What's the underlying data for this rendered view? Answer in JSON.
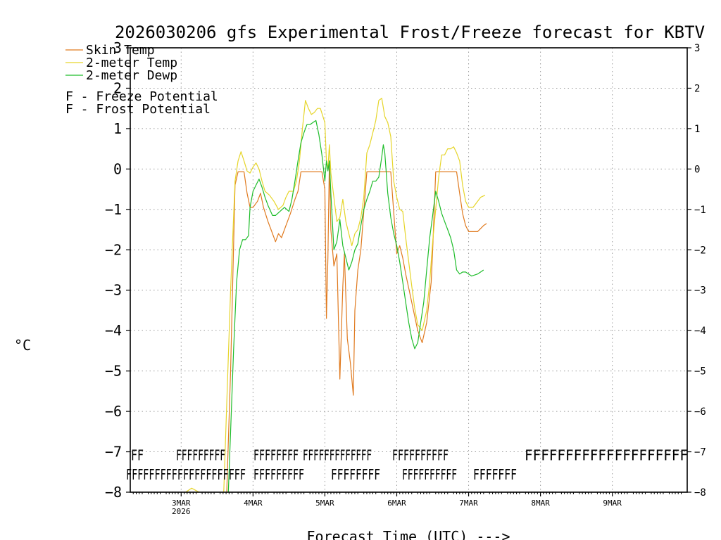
{
  "chart_data": {
    "type": "line",
    "title": "2026030206 gfs Experimental Frost/Freeze forecast for KBTV",
    "ylabel": "°C",
    "xlabel": "Forecast Time (UTC) --->",
    "ylim": [
      -8,
      3
    ],
    "xlim": [
      -17,
      169
    ],
    "y_ticks": [
      -8,
      -7,
      -6,
      -5,
      -4,
      -3,
      -2,
      -1,
      0,
      1,
      2,
      3
    ],
    "y_tick_labels": [
      "−8",
      "−7",
      "−6",
      "−5",
      "−4",
      "−3",
      "−2",
      "−1",
      "0",
      "1",
      "2",
      "3"
    ],
    "x_ticks": [
      {
        "hour": 0,
        "label": "3MAR",
        "sub": "2026"
      },
      {
        "hour": 24,
        "label": "4MAR",
        "sub": ""
      },
      {
        "hour": 48,
        "label": "5MAR",
        "sub": ""
      },
      {
        "hour": 72,
        "label": "6MAR",
        "sub": ""
      },
      {
        "hour": 96,
        "label": "7MAR",
        "sub": ""
      },
      {
        "hour": 120,
        "label": "8MAR",
        "sub": ""
      },
      {
        "hour": 144,
        "label": "9MAR",
        "sub": ""
      }
    ],
    "grid": true,
    "legend_position": "top-left",
    "series": [
      {
        "name": "Skin Temp",
        "color": "#e07a1f",
        "points": [
          [
            15,
            -8.5
          ],
          [
            16.5,
            -5
          ],
          [
            18,
            -0.4
          ],
          [
            19,
            -0.07
          ],
          [
            21,
            -0.07
          ],
          [
            22,
            -0.6
          ],
          [
            23,
            -0.95
          ],
          [
            24,
            -0.95
          ],
          [
            25.5,
            -0.8
          ],
          [
            26.5,
            -0.6
          ],
          [
            27.5,
            -0.95
          ],
          [
            29,
            -1.3
          ],
          [
            30,
            -1.5
          ],
          [
            31.5,
            -1.8
          ],
          [
            32.5,
            -1.6
          ],
          [
            33.5,
            -1.7
          ],
          [
            35,
            -1.4
          ],
          [
            36.5,
            -1.1
          ],
          [
            38,
            -0.75
          ],
          [
            39,
            -0.55
          ],
          [
            40,
            -0.07
          ],
          [
            42,
            -0.07
          ],
          [
            47,
            -0.07
          ],
          [
            48,
            -0.5
          ],
          [
            48.5,
            -3.7
          ],
          [
            49,
            -2.2
          ],
          [
            49.5,
            0.2
          ],
          [
            50,
            -1.5
          ],
          [
            51,
            -2.4
          ],
          [
            52,
            -2.1
          ],
          [
            53,
            -5.2
          ],
          [
            54,
            -2.9
          ],
          [
            54.5,
            -2.1
          ],
          [
            55.5,
            -4.2
          ],
          [
            56.5,
            -4.8
          ],
          [
            57.5,
            -5.6
          ],
          [
            58,
            -3.5
          ],
          [
            59,
            -2.5
          ],
          [
            60,
            -2
          ],
          [
            62,
            -0.07
          ],
          [
            70,
            -0.07
          ],
          [
            72,
            -2.1
          ],
          [
            73,
            -1.9
          ],
          [
            74,
            -2.2
          ],
          [
            75,
            -2.6
          ],
          [
            77,
            -3.3
          ],
          [
            79,
            -4.0
          ],
          [
            80.5,
            -4.3
          ],
          [
            82,
            -3.8
          ],
          [
            83.5,
            -2.8
          ],
          [
            84,
            -2.0
          ],
          [
            85,
            -0.07
          ],
          [
            92,
            -0.07
          ],
          [
            93,
            -0.6
          ],
          [
            94,
            -1.1
          ],
          [
            95,
            -1.4
          ],
          [
            96,
            -1.55
          ],
          [
            99,
            -1.55
          ],
          [
            101,
            -1.4
          ],
          [
            102,
            -1.35
          ]
        ]
      },
      {
        "name": "2-meter Temp",
        "color": "#e6d52a",
        "points": [
          [
            0.5,
            -8.5
          ],
          [
            1.5,
            -8
          ],
          [
            3.5,
            -7.9
          ],
          [
            6,
            -8
          ],
          [
            9,
            -8.2
          ],
          [
            12,
            -8.4
          ],
          [
            14,
            -8.5
          ],
          [
            16.5,
            -3
          ],
          [
            18,
            -0.3
          ],
          [
            19,
            0.2
          ],
          [
            20,
            0.43
          ],
          [
            21,
            0.2
          ],
          [
            22,
            -0.05
          ],
          [
            23,
            -0.1
          ],
          [
            24,
            0.05
          ],
          [
            25,
            0.15
          ],
          [
            26,
            0
          ],
          [
            27,
            -0.3
          ],
          [
            28,
            -0.55
          ],
          [
            29.5,
            -0.65
          ],
          [
            31,
            -0.8
          ],
          [
            32.5,
            -1.0
          ],
          [
            34,
            -0.9
          ],
          [
            35,
            -0.7
          ],
          [
            36,
            -0.55
          ],
          [
            37.5,
            -0.55
          ],
          [
            38.5,
            -0.3
          ],
          [
            39.5,
            0.2
          ],
          [
            40.5,
            1.0
          ],
          [
            41.5,
            1.7
          ],
          [
            42.5,
            1.5
          ],
          [
            43.5,
            1.35
          ],
          [
            44.5,
            1.4
          ],
          [
            45.5,
            1.5
          ],
          [
            46.5,
            1.5
          ],
          [
            48,
            1.15
          ],
          [
            48.5,
            0.2
          ],
          [
            49,
            0.0
          ],
          [
            49.5,
            0.6
          ],
          [
            50,
            -0.1
          ],
          [
            51,
            -0.7
          ],
          [
            52,
            -1.3
          ],
          [
            53,
            -1.2
          ],
          [
            54,
            -0.75
          ],
          [
            55,
            -1.3
          ],
          [
            56,
            -1.6
          ],
          [
            57,
            -1.9
          ],
          [
            58,
            -1.6
          ],
          [
            59,
            -1.5
          ],
          [
            60,
            -1.2
          ],
          [
            61,
            -0.7
          ],
          [
            62,
            0.4
          ],
          [
            63,
            0.6
          ],
          [
            64,
            0.9
          ],
          [
            65,
            1.2
          ],
          [
            66,
            1.7
          ],
          [
            67,
            1.75
          ],
          [
            68,
            1.3
          ],
          [
            69,
            1.15
          ],
          [
            70,
            0.8
          ],
          [
            71,
            -0.3
          ],
          [
            72,
            -0.7
          ],
          [
            73,
            -1.0
          ],
          [
            74,
            -1.05
          ],
          [
            75,
            -1.7
          ],
          [
            76,
            -2.3
          ],
          [
            77,
            -2.9
          ],
          [
            78,
            -3.45
          ],
          [
            79,
            -3.85
          ],
          [
            80.5,
            -4.0
          ],
          [
            82,
            -3.5
          ],
          [
            83,
            -2.8
          ],
          [
            84,
            -1.8
          ],
          [
            85,
            -1.0
          ],
          [
            86,
            -0.2
          ],
          [
            87,
            0.35
          ],
          [
            88,
            0.35
          ],
          [
            89,
            0.5
          ],
          [
            90,
            0.5
          ],
          [
            91,
            0.55
          ],
          [
            92,
            0.4
          ],
          [
            93,
            0.2
          ],
          [
            94,
            -0.4
          ],
          [
            95,
            -0.8
          ],
          [
            96,
            -0.95
          ],
          [
            97.5,
            -0.95
          ],
          [
            100,
            -0.7
          ],
          [
            101.5,
            -0.65
          ]
        ]
      },
      {
        "name": "2-meter Dewp",
        "color": "#1fbd2b",
        "points": [
          [
            15.5,
            -8.5
          ],
          [
            16.5,
            -6.5
          ],
          [
            17.5,
            -4.5
          ],
          [
            18.5,
            -2.8
          ],
          [
            19.5,
            -2.0
          ],
          [
            20.5,
            -1.75
          ],
          [
            21.5,
            -1.75
          ],
          [
            22.5,
            -1.65
          ],
          [
            23,
            -0.95
          ],
          [
            24,
            -0.55
          ],
          [
            25,
            -0.4
          ],
          [
            26,
            -0.25
          ],
          [
            27,
            -0.45
          ],
          [
            28,
            -0.7
          ],
          [
            29,
            -0.9
          ],
          [
            30.5,
            -1.15
          ],
          [
            31.5,
            -1.15
          ],
          [
            33,
            -1.05
          ],
          [
            34.5,
            -0.95
          ],
          [
            36,
            -1.05
          ],
          [
            37,
            -0.75
          ],
          [
            38,
            -0.3
          ],
          [
            39,
            0.2
          ],
          [
            40,
            0.65
          ],
          [
            41,
            0.9
          ],
          [
            42,
            1.1
          ],
          [
            43,
            1.1
          ],
          [
            44,
            1.15
          ],
          [
            45,
            1.2
          ],
          [
            46,
            0.85
          ],
          [
            47,
            0.35
          ],
          [
            48,
            -0.3
          ],
          [
            48.5,
            0.2
          ],
          [
            49,
            -0.05
          ],
          [
            49.5,
            0.2
          ],
          [
            50,
            -0.6
          ],
          [
            51,
            -2.0
          ],
          [
            52,
            -1.8
          ],
          [
            53,
            -1.25
          ],
          [
            54,
            -1.9
          ],
          [
            55,
            -2.2
          ],
          [
            56,
            -2.5
          ],
          [
            57,
            -2.3
          ],
          [
            58,
            -2.0
          ],
          [
            59,
            -1.85
          ],
          [
            60,
            -1.4
          ],
          [
            61,
            -1.0
          ],
          [
            62,
            -0.75
          ],
          [
            63,
            -0.55
          ],
          [
            64,
            -0.3
          ],
          [
            65,
            -0.3
          ],
          [
            66,
            -0.2
          ],
          [
            67,
            0.3
          ],
          [
            67.5,
            0.6
          ],
          [
            68,
            0.4
          ],
          [
            69,
            -0.6
          ],
          [
            70,
            -1.2
          ],
          [
            71,
            -1.6
          ],
          [
            72,
            -1.9
          ],
          [
            73,
            -2.3
          ],
          [
            74,
            -2.8
          ],
          [
            75,
            -3.3
          ],
          [
            76,
            -3.8
          ],
          [
            77,
            -4.2
          ],
          [
            78,
            -4.45
          ],
          [
            79,
            -4.3
          ],
          [
            80,
            -3.8
          ],
          [
            81,
            -3.3
          ],
          [
            82,
            -2.5
          ],
          [
            83,
            -1.7
          ],
          [
            84,
            -1.15
          ],
          [
            85,
            -0.55
          ],
          [
            86,
            -0.8
          ],
          [
            87,
            -1.1
          ],
          [
            88,
            -1.3
          ],
          [
            89,
            -1.5
          ],
          [
            90,
            -1.7
          ],
          [
            91,
            -2.0
          ],
          [
            92,
            -2.5
          ],
          [
            93,
            -2.6
          ],
          [
            94,
            -2.55
          ],
          [
            95,
            -2.55
          ],
          [
            96,
            -2.6
          ],
          [
            97,
            -2.65
          ],
          [
            99,
            -2.6
          ],
          [
            101,
            -2.5
          ]
        ]
      }
    ],
    "frost_rows": [
      {
        "name": "F - Frost Potential",
        "color": "#4a63c8",
        "y": -7.07,
        "segments": [
          "FF",
          "FFFFFFFFF",
          "FFFFFFFF",
          "FFFFFFFFFFFFF",
          "FFFFFFFFFF",
          "FFFFFFFFFFFFFFFFFFFF"
        ]
      },
      {
        "name": "F - Freeze Potential",
        "color": "#cc2c8c",
        "y": -7.55,
        "segments": [
          "FFFFFFFFFFFFFFFFFFFFF",
          "FFFFFFFFF",
          "FFFFFFFF",
          "FFFFFFFFFF",
          "FFFFFFF"
        ]
      }
    ],
    "legend": [
      {
        "label": "Skin Temp",
        "kind": "line",
        "color": "#e07a1f"
      },
      {
        "label": "2-meter Temp",
        "kind": "line",
        "color": "#e6d52a"
      },
      {
        "label": "2-meter Dewp",
        "kind": "line",
        "color": "#1fbd2b"
      },
      {
        "label": "F - Freeze Potential",
        "kind": "letter",
        "letter": "F",
        "color": "#cc2c8c"
      },
      {
        "label": "F - Frost Potential",
        "kind": "letter",
        "letter": "F",
        "color": "#4a63c8"
      }
    ]
  }
}
